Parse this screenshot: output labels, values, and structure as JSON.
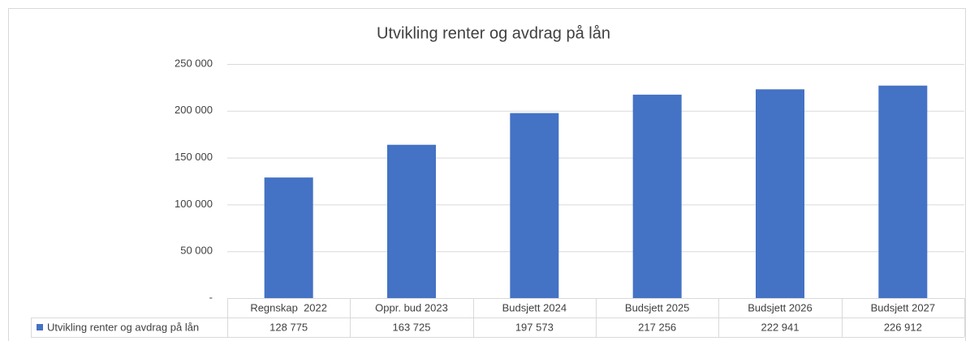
{
  "chart_data": {
    "type": "bar",
    "title": "Utvikling renter og avdrag på lån",
    "categories": [
      "Regnskap  2022",
      "Oppr. bud 2023",
      "Budsjett 2024",
      "Budsjett 2025",
      "Budsjett 2026",
      "Budsjett 2027"
    ],
    "series": [
      {
        "name": "Utvikling renter og avdrag på lån",
        "color": "#4472c4",
        "values": [
          128775,
          163725,
          197573,
          217256,
          222941,
          226912
        ],
        "value_labels": [
          "128 775",
          "163 725",
          "197 573",
          "217 256",
          "222 941",
          "226 912"
        ]
      }
    ],
    "ylim": [
      0,
      250000
    ],
    "yticks": [
      {
        "value": 0,
        "label": "-"
      },
      {
        "value": 50000,
        "label": "50 000"
      },
      {
        "value": 100000,
        "label": "100 000"
      },
      {
        "value": 150000,
        "label": "150 000"
      },
      {
        "value": 200000,
        "label": "200 000"
      },
      {
        "value": 250000,
        "label": "250 000"
      }
    ],
    "grid": true
  }
}
